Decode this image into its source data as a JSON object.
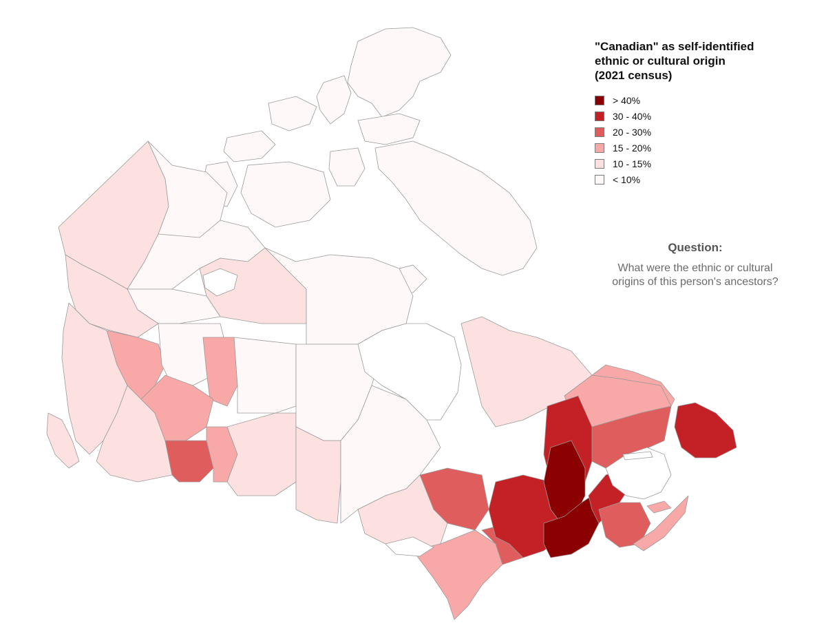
{
  "title": {
    "lines": [
      "\"Canadian\" as self-identified",
      "ethnic or cultural origin",
      "(2021 census)"
    ]
  },
  "legend": {
    "items": [
      {
        "label": "> 40%",
        "color": "#8b0000"
      },
      {
        "label": "30 - 40%",
        "color": "#c42127"
      },
      {
        "label": "20 - 30%",
        "color": "#e05d5d"
      },
      {
        "label": "15 - 20%",
        "color": "#f9a8a8"
      },
      {
        "label": "10 - 15%",
        "color": "#fde1e1"
      },
      {
        "label": "< 10%",
        "color": "#fff8f8"
      }
    ]
  },
  "question": {
    "title": "Question:",
    "lines": [
      "What were the ethnic or cultural",
      "origins of this person's ancestors?"
    ]
  }
}
